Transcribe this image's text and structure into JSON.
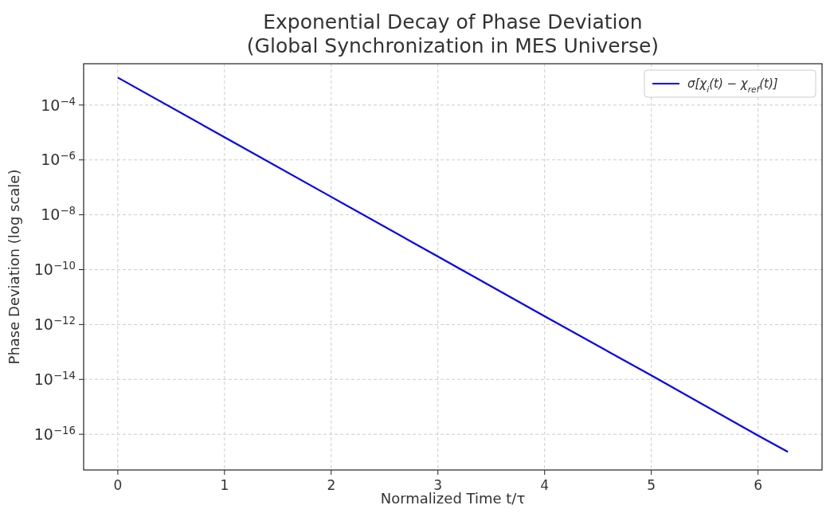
{
  "chart_data": {
    "type": "line",
    "title": "Exponential Decay of Phase Deviation\n(Global Synchronization in MES Universe)",
    "xlabel": "Normalized Time t/τ",
    "ylabel": "Phase Deviation (log scale)",
    "log": "y",
    "grid": true,
    "legend": "top right",
    "line_style": "solid",
    "marker": "none",
    "xlim": [
      -0.32,
      6.6
    ],
    "xticks": [
      0,
      1,
      2,
      3,
      4,
      5,
      6
    ],
    "ylim": [
      5e-18,
      0.0032
    ],
    "yticks": [
      {
        "value": 0.0001,
        "label": "10$^{−4}$"
      },
      {
        "value": 1e-06,
        "label": "10$^{−6}$"
      },
      {
        "value": 1e-08,
        "label": "10$^{−8}$"
      },
      {
        "value": 1e-10,
        "label": "10$^{−10}$"
      },
      {
        "value": 1e-12,
        "label": "10$^{−12}$"
      },
      {
        "value": 1e-14,
        "label": "10$^{−14}$"
      },
      {
        "value": 1e-16,
        "label": "10$^{−16}$"
      }
    ],
    "series": [
      {
        "name": "σ[χ$_{i}$(t) − χ$_{ref}$(t)]",
        "color": "#0000ff",
        "x": [
          0,
          1,
          2,
          3,
          4,
          5,
          6,
          6.28
        ],
        "values": [
          0.001,
          6.7e-06,
          4.5e-08,
          3e-10,
          2e-12,
          1.4e-14,
          9e-17,
          2.3e-17
        ]
      }
    ]
  }
}
